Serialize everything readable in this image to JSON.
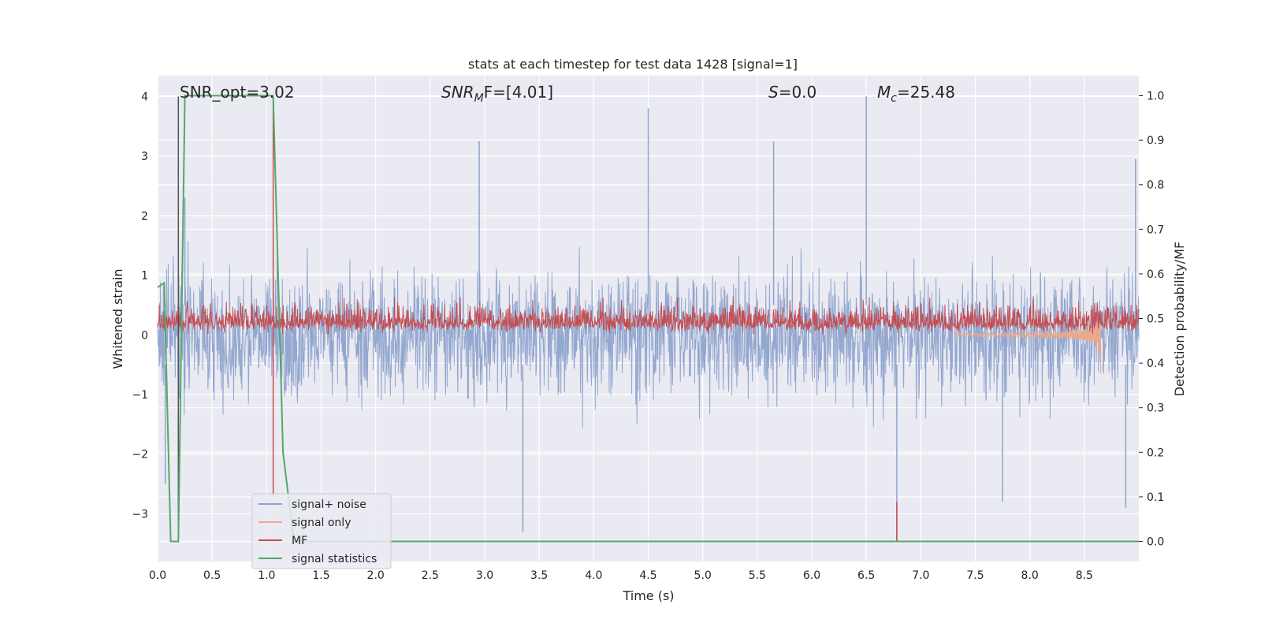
{
  "chart_data": {
    "type": "line",
    "title": "stats at each timestep for test data 1428 [signal=1]",
    "xlabel": "Time (s)",
    "ylabel_left": "Whitened strain",
    "ylabel_right": "Detection probability/MF",
    "xlim": [
      0.0,
      9.0
    ],
    "ylim_left": [
      -3.8,
      4.35
    ],
    "ylim_right": [
      -0.045,
      1.045
    ],
    "xticks": [
      "0.0",
      "0.5",
      "1.0",
      "1.5",
      "2.0",
      "2.5",
      "3.0",
      "3.5",
      "4.0",
      "4.5",
      "5.0",
      "5.5",
      "6.0",
      "6.5",
      "7.0",
      "7.5",
      "8.0",
      "8.5"
    ],
    "yticks_left": [
      "4",
      "3",
      "2",
      "1",
      "0",
      "−1",
      "−2",
      "−3"
    ],
    "yticks_right": [
      "1.0",
      "0.9",
      "0.8",
      "0.7",
      "0.6",
      "0.5",
      "0.4",
      "0.3",
      "0.2",
      "0.1",
      "0.0"
    ],
    "grid": true,
    "legend_position": "lower-left",
    "annotations": {
      "snr_opt": "SNR_opt=3.02",
      "snr_mf_sym": "SNR",
      "snr_mf_sub": "M",
      "snr_mf_rest": "F=[4.01]",
      "s_sym": "S",
      "s_rest": "=0.0",
      "mc_sym": "M",
      "mc_sub": "c",
      "mc_rest": "=25.48"
    },
    "markers": {
      "gray_line_x": 0.19,
      "red_line_x": 1.06,
      "red_dip_x": 6.78
    },
    "series": [
      {
        "name": "signal+ noise",
        "axis": "left",
        "color": "#8ea3cc",
        "description_range": [
          -2.7,
          2.6
        ],
        "peaks": [
          [
            0.25,
            2.3
          ],
          [
            2.95,
            3.25
          ],
          [
            4.5,
            3.8
          ],
          [
            5.65,
            3.25
          ],
          [
            6.5,
            4.0
          ],
          [
            8.97,
            2.95
          ]
        ],
        "troughs": [
          [
            0.07,
            -2.5
          ],
          [
            3.35,
            -3.3
          ],
          [
            6.78,
            -3.45
          ],
          [
            7.75,
            -2.8
          ],
          [
            8.88,
            -2.9
          ]
        ]
      },
      {
        "name": "signal only",
        "axis": "left",
        "color": "#e8a98f",
        "chirp": {
          "start": 7.3,
          "peak_time": 8.65,
          "peak_amp": 0.6,
          "min_amp": -0.65
        }
      },
      {
        "name": "MF",
        "axis": "right",
        "color": "#c44e52",
        "base": 0.49,
        "range": [
          0.465,
          0.6
        ]
      },
      {
        "name": "signal statistics",
        "axis": "right",
        "color": "#55a868",
        "x": [
          0.0,
          0.06,
          0.12,
          0.19,
          0.25,
          1.06,
          1.15,
          1.25,
          9.0
        ],
        "y": [
          0.57,
          0.58,
          0.0,
          0.0,
          1.0,
          1.0,
          0.2,
          0.0,
          0.0
        ]
      }
    ],
    "colors": {
      "background": "#eaeaf2",
      "grid": "#ffffff",
      "gray_line": "#555555"
    }
  }
}
